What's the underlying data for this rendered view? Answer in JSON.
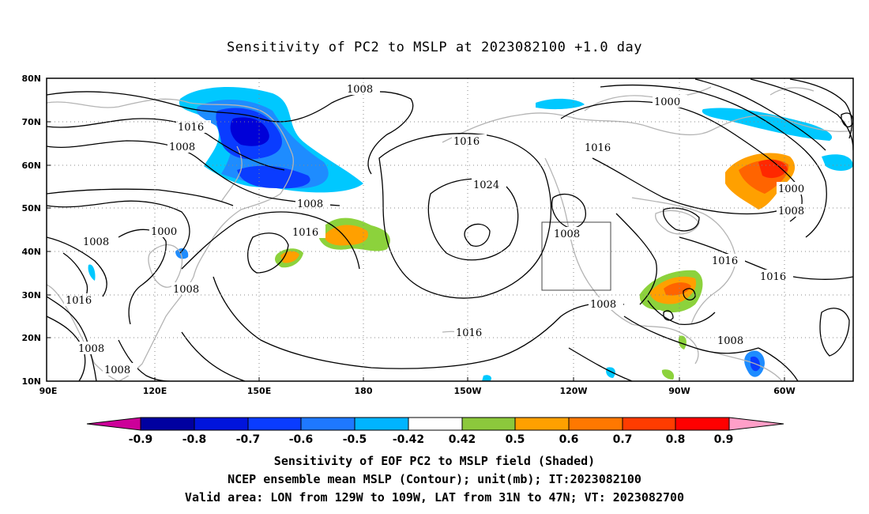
{
  "title": "Sensitivity of PC2 to MSLP at 2023082100 +1.0 day",
  "map": {
    "lat_labels": [
      "80N",
      "70N",
      "60N",
      "50N",
      "40N",
      "30N",
      "20N",
      "10N"
    ],
    "lon_labels": [
      "90E",
      "120E",
      "150E",
      "180",
      "150W",
      "120W",
      "90W",
      "60W"
    ],
    "contour_labels": [
      "1008",
      "1016",
      "1008",
      "1016",
      "1024",
      "1008",
      "1016",
      "1008",
      "1000",
      "1008",
      "1016",
      "1000",
      "1000",
      "1008",
      "1016",
      "1016",
      "1008",
      "1008",
      "1016",
      "1008",
      "1008",
      "1016",
      "1000",
      "1008",
      "1008"
    ],
    "contour_levels_mb": [
      1000,
      1008,
      1016,
      1024
    ],
    "colors": {
      "neg_strong": "#0000d8",
      "neg_mid": "#0a3cff",
      "neg_light": "#1e8cff",
      "neg_weak": "#00c8ff",
      "pos_weak": "#8cd23c",
      "pos_light": "#ffa000",
      "pos_mid": "#ff6400",
      "pos_strong": "#ff2800",
      "coast": "#b4b4b4",
      "contour": "#000000"
    }
  },
  "colorbar": {
    "labels": [
      "-0.9",
      "-0.8",
      "-0.7",
      "-0.6",
      "-0.5",
      "-0.42",
      "0.42",
      "0.5",
      "0.6",
      "0.7",
      "0.8",
      "0.9"
    ],
    "colors": [
      "#cc0099",
      "#0000a0",
      "#0014dc",
      "#0a3cff",
      "#1e78ff",
      "#00b4ff",
      "#ffffff",
      "#8cc83c",
      "#ffa000",
      "#ff7800",
      "#ff3c00",
      "#ff0000",
      "#ff9fc8"
    ]
  },
  "captions": [
    "Sensitivity of EOF PC2 to MSLP field (Shaded)",
    "NCEP ensemble mean MSLP (Contour); unit(mb); IT:2023082100",
    "Valid area: LON from 129W to 109W, LAT from 31N to 47N; VT: 2023082700"
  ]
}
